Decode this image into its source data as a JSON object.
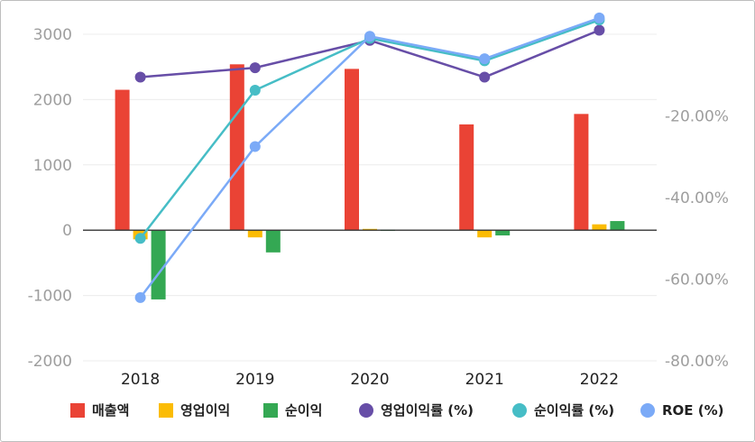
{
  "chart_data": {
    "type": "bar",
    "categories": [
      "2018",
      "2019",
      "2020",
      "2021",
      "2022"
    ],
    "left_axis": {
      "ylim": [
        -2000,
        3000
      ],
      "ticks": [
        "3000",
        "2000",
        "1000",
        "0",
        "-1000",
        "-2000"
      ],
      "tick_values": [
        3000,
        2000,
        1000,
        0,
        -1000,
        -2000
      ]
    },
    "right_axis": {
      "ylim": [
        -80,
        0
      ],
      "ticks": [
        "-20.00%",
        "-40.00%",
        "-60.00%",
        "-80.00%"
      ],
      "tick_values": [
        -20,
        -40,
        -60,
        -80
      ]
    },
    "grid": true,
    "legend_position": "bottom",
    "bar_series": [
      {
        "name": "매출액",
        "color": "#ea4335",
        "values": [
          2150,
          2540,
          2470,
          1620,
          1780
        ]
      },
      {
        "name": "영업이익",
        "color": "#fbbc04",
        "values": [
          -140,
          -110,
          20,
          -110,
          90
        ]
      },
      {
        "name": "순이익",
        "color": "#34a853",
        "values": [
          -1060,
          -340,
          10,
          -80,
          140
        ]
      }
    ],
    "line_series": [
      {
        "name": "영업이익률 (%)",
        "color": "#674ea7",
        "values": [
          -10.5,
          -8.2,
          -1.5,
          -10.5,
          1.0
        ]
      },
      {
        "name": "순이익률 (%)",
        "color": "#46bdc6",
        "values": [
          -50.0,
          -13.7,
          -1.0,
          -6.5,
          3.5
        ]
      },
      {
        "name": "ROE (%)",
        "color": "#7baaf7",
        "values": [
          -64.5,
          -27.5,
          -0.5,
          -6.0,
          4.0
        ]
      }
    ]
  }
}
